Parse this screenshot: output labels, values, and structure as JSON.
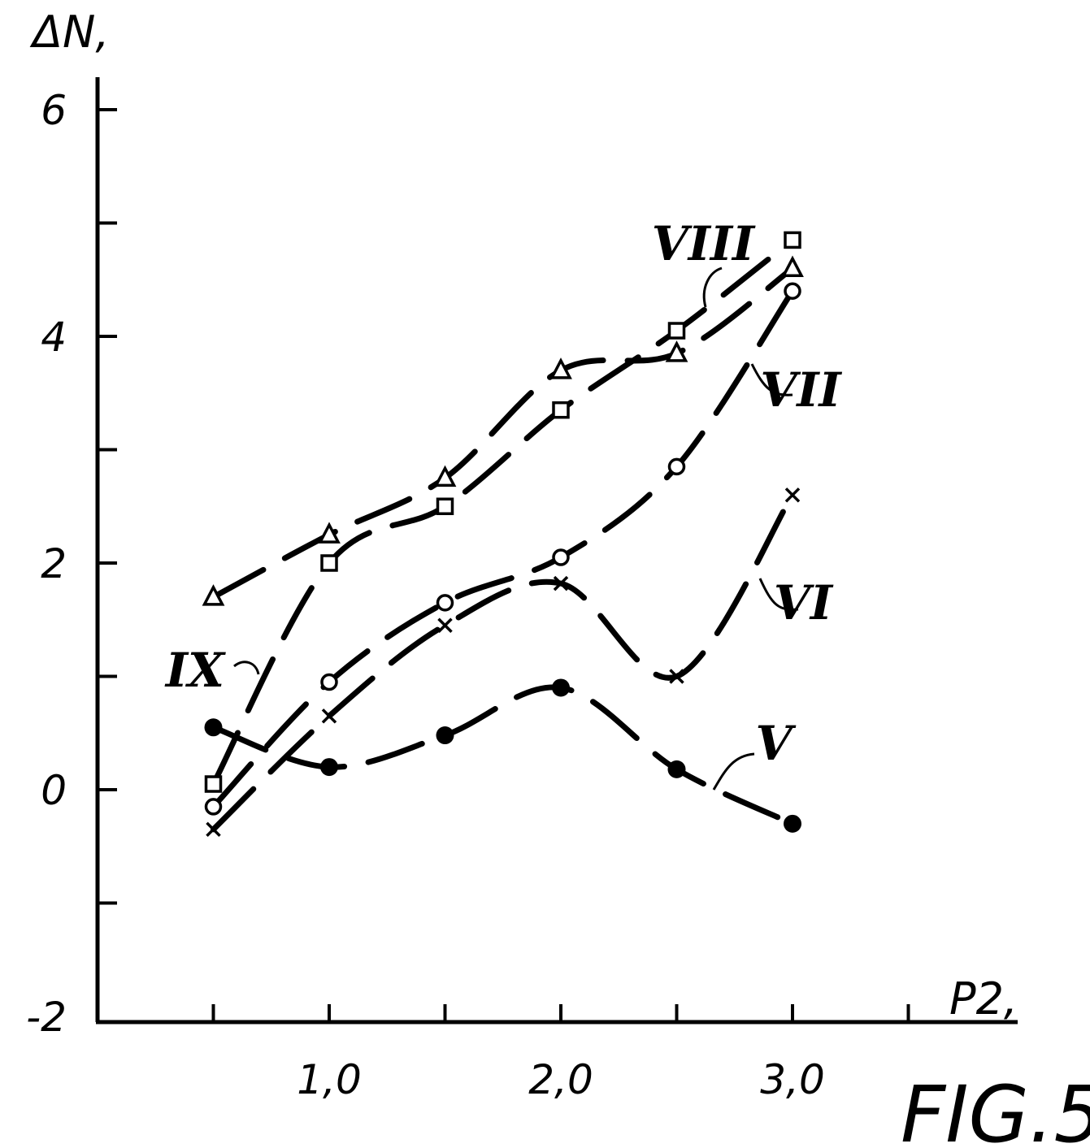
{
  "chart_data": {
    "type": "line",
    "ylabel": "ΔN,",
    "xlabel": "P2,",
    "figure_label": "FIG.5",
    "xlim": [
      0,
      4.0
    ],
    "ylim": [
      -2,
      6.5
    ],
    "x_ticks": [
      0.5,
      1.0,
      1.5,
      2.0,
      2.5,
      3.0,
      3.5
    ],
    "x_tick_labels": [
      {
        "value": 1.0,
        "label": "1,0"
      },
      {
        "value": 2.0,
        "label": "2,0"
      },
      {
        "value": 3.0,
        "label": "3,0"
      }
    ],
    "y_ticks": [
      -1,
      0,
      1,
      2,
      3,
      4,
      5,
      6
    ],
    "y_tick_labels": [
      {
        "value": 6,
        "label": "6"
      },
      {
        "value": 4,
        "label": "4"
      },
      {
        "value": 2,
        "label": "2"
      },
      {
        "value": 0,
        "label": "0"
      },
      {
        "value": -2,
        "label": "-2"
      }
    ],
    "grid": false,
    "series": [
      {
        "name": "V",
        "marker": "filled-circle",
        "x": [
          0.5,
          1.0,
          1.5,
          2.0,
          2.5,
          3.0
        ],
        "y": [
          0.55,
          0.2,
          0.48,
          0.9,
          0.18,
          -0.3
        ]
      },
      {
        "name": "VI",
        "marker": "cross",
        "x": [
          0.5,
          1.0,
          1.5,
          2.0,
          2.5,
          3.0
        ],
        "y": [
          -0.35,
          0.65,
          1.45,
          1.82,
          1.0,
          2.6
        ]
      },
      {
        "name": "VII",
        "marker": "open-circle",
        "x": [
          0.5,
          1.0,
          1.5,
          2.0,
          2.5,
          3.0
        ],
        "y": [
          -0.15,
          0.95,
          1.65,
          2.05,
          2.85,
          4.4
        ]
      },
      {
        "name": "VIII",
        "marker": "triangle",
        "x": [
          0.5,
          1.0,
          1.5,
          2.0,
          2.5,
          3.0
        ],
        "y": [
          1.7,
          2.25,
          2.75,
          3.7,
          3.85,
          4.6
        ]
      },
      {
        "name": "IX",
        "marker": "square",
        "x": [
          0.5,
          1.0,
          1.5,
          2.0,
          2.5,
          3.0
        ],
        "y": [
          0.05,
          2.0,
          2.5,
          3.35,
          4.05,
          4.85
        ]
      }
    ]
  }
}
